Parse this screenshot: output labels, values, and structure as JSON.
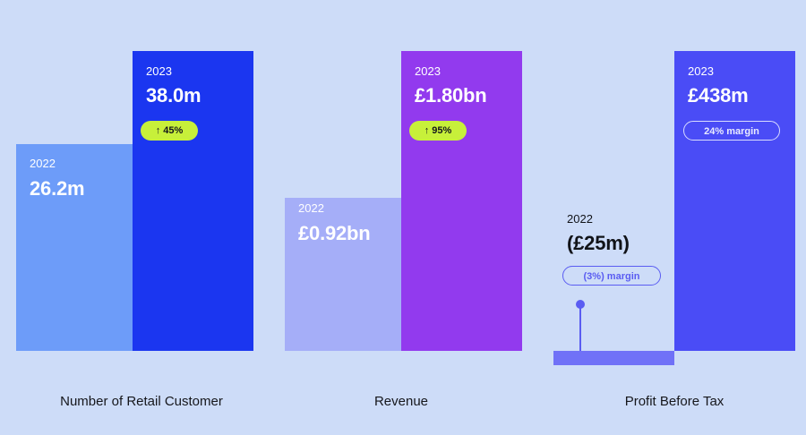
{
  "chart_data": [
    {
      "type": "bar",
      "title": "Number of Retail Customer",
      "categories": [
        "2022",
        "2023"
      ],
      "values": [
        26.2,
        38.0
      ],
      "unit": "m",
      "value_labels": [
        "26.2m",
        "38.0m"
      ],
      "change_label": "↑ 45%",
      "colors": [
        "#6d9cf9",
        "#1b36f0"
      ]
    },
    {
      "type": "bar",
      "title": "Revenue",
      "categories": [
        "2022",
        "2023"
      ],
      "values": [
        0.92,
        1.8
      ],
      "unit": "£bn",
      "value_labels": [
        "£0.92bn",
        "£1.80bn"
      ],
      "change_label": "↑ 95%",
      "colors": [
        "#a5aef8",
        "#923aee"
      ]
    },
    {
      "type": "bar",
      "title": "Profit Before Tax",
      "categories": [
        "2022",
        "2023"
      ],
      "values": [
        -25,
        438
      ],
      "unit": "£m",
      "value_labels": [
        "(£25m)",
        "£438m"
      ],
      "margin_labels": [
        "(3%) margin",
        "24% margin"
      ],
      "colors": [
        "#7071f7",
        "#4a4cf6"
      ]
    }
  ]
}
